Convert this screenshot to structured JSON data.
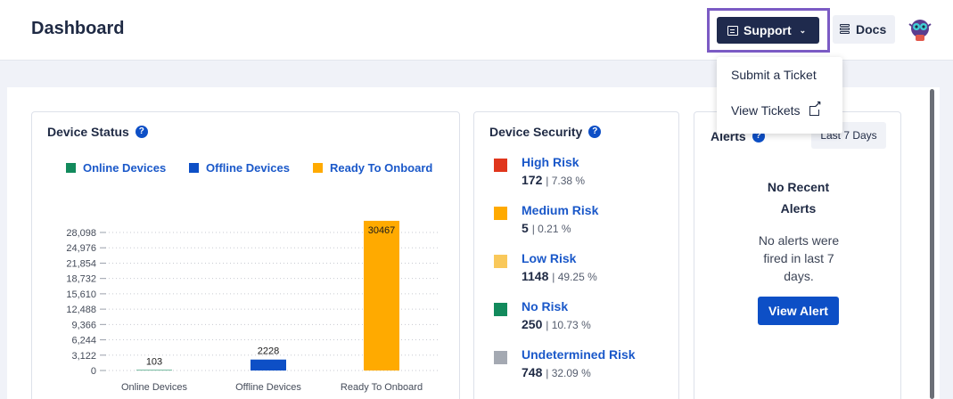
{
  "header": {
    "title": "Dashboard"
  },
  "toolbar": {
    "support_label": "Support",
    "docs_label": "Docs",
    "highlight_color": "#7b5bc4"
  },
  "support_menu": {
    "items": [
      {
        "label": "Submit a Ticket",
        "icon": ""
      },
      {
        "label": "View Tickets",
        "icon": "external-link-icon"
      }
    ]
  },
  "device_status": {
    "title": "Device Status",
    "legend": [
      {
        "label": "Online Devices",
        "color": "#128a5c"
      },
      {
        "label": "Offline Devices",
        "color": "#0d4fc6"
      },
      {
        "label": "Ready To Onboard",
        "color": "#ffaa00"
      }
    ]
  },
  "chart_data": {
    "type": "bar",
    "title": "Device Status",
    "categories": [
      "Online Devices",
      "Offline Devices",
      "Ready To Onboard"
    ],
    "values": [
      103,
      2228,
      30467
    ],
    "colors": [
      "#128a5c",
      "#0d4fc6",
      "#ffaa00"
    ],
    "data_labels": [
      "103",
      "2228",
      "30467"
    ],
    "yticks": [
      0,
      3122,
      6244,
      9366,
      12488,
      15610,
      18732,
      21854,
      24976,
      28098
    ],
    "ytick_labels": [
      "0",
      "3,122",
      "6,244",
      "9,366",
      "12,488",
      "15,610",
      "18,732",
      "21,854",
      "24,976",
      "28,098"
    ],
    "ylim": [
      0,
      30467
    ],
    "xlabel": "",
    "ylabel": "",
    "grid": true,
    "legend": "top"
  },
  "device_security": {
    "title": "Device Security",
    "rows": [
      {
        "name": "High Risk",
        "count": "172",
        "pct": "| 7.38 %",
        "color": "#e0361c"
      },
      {
        "name": "Medium Risk",
        "count": "5",
        "pct": "| 0.21 %",
        "color": "#ffaa00"
      },
      {
        "name": "Low Risk",
        "count": "1148",
        "pct": "| 49.25 %",
        "color": "#f9c85a"
      },
      {
        "name": "No Risk",
        "count": "250",
        "pct": "| 10.73 %",
        "color": "#128a5c"
      },
      {
        "name": "Undetermined Risk",
        "count": "748",
        "pct": "| 32.09 %",
        "color": "#a4a9b2"
      }
    ]
  },
  "alerts": {
    "title": "Alerts",
    "range_label": "Last 7 Days",
    "empty_title_line1": "No Recent",
    "empty_title_line2": "Alerts",
    "empty_message": "No alerts were fired in last 7 days.",
    "view_button": "View Alert"
  }
}
